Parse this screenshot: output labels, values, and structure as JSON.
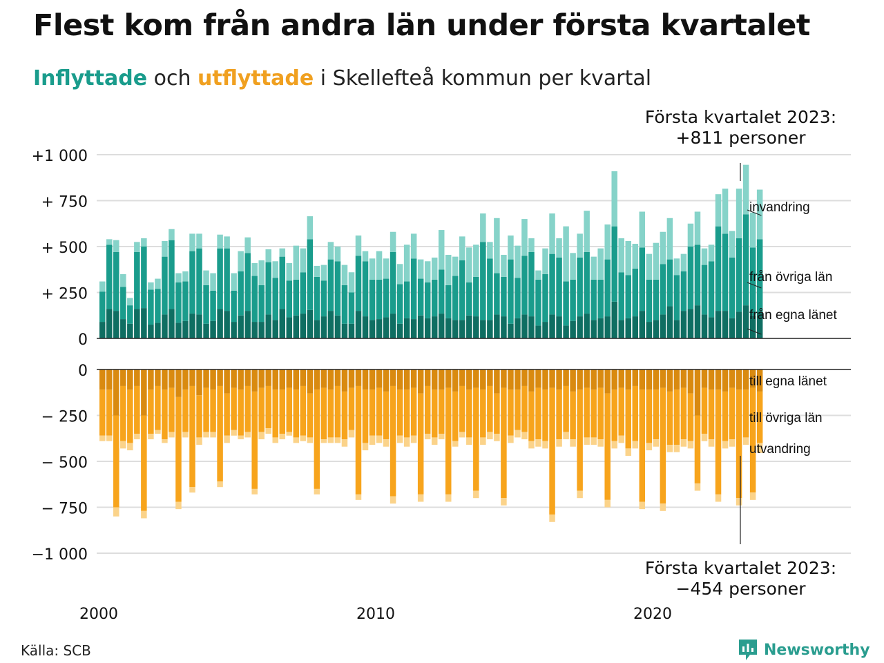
{
  "header": {
    "title": "Flest kom från andra län under första kvartalet",
    "subtitle_in": "Inflyttade",
    "subtitle_mid": " och ",
    "subtitle_out": "utflyttade",
    "subtitle_rest": " i Skellefteå kommun per kvartal"
  },
  "annotations": {
    "top_line1": "Första kvartalet 2023:",
    "top_line2": "+811 personer",
    "bottom_line1": "Första kvartalet 2023:",
    "bottom_line2": "−454 personer"
  },
  "footer": {
    "source": "Källa: SCB",
    "brand": "Newsworthy"
  },
  "colors": {
    "in_own_county": "#0f6e62",
    "in_other_counties": "#1a9c8c",
    "in_abroad": "#86d3c9",
    "out_own_county": "#d98a10",
    "out_other_counties": "#f7a41c",
    "out_abroad": "#fbd38a",
    "brand": "#2a9d8f"
  },
  "chart_data": {
    "type": "bar",
    "stacked": true,
    "x_start": "2000 Q1",
    "x_end": "2023 Q1",
    "x_ticks": [
      "2000",
      "2010",
      "2020"
    ],
    "inflow": {
      "ylim": [
        0,
        1000
      ],
      "y_ticks": [
        "0",
        "+ 250",
        "+ 500",
        "+ 750",
        "+1 000"
      ],
      "series": [
        {
          "name": "från egna länet",
          "values": [
            90,
            160,
            150,
            105,
            80,
            160,
            165,
            75,
            85,
            130,
            160,
            85,
            95,
            135,
            130,
            80,
            95,
            160,
            150,
            90,
            125,
            150,
            90,
            90,
            130,
            100,
            160,
            115,
            125,
            135,
            155,
            100,
            120,
            150,
            125,
            80,
            80,
            150,
            120,
            100,
            105,
            115,
            135,
            80,
            110,
            105,
            125,
            110,
            120,
            135,
            110,
            100,
            100,
            125,
            120,
            100,
            100,
            130,
            120,
            80,
            110,
            130,
            120,
            70,
            90,
            130,
            120,
            70,
            95,
            120,
            135,
            100,
            110,
            120,
            200,
            100,
            110,
            120,
            150,
            90,
            100,
            130,
            175,
            100,
            150,
            160,
            180,
            130,
            115,
            150,
            150,
            110,
            145,
            180,
            125,
            145
          ]
        },
        {
          "name": "från övriga län",
          "values": [
            165,
            350,
            320,
            175,
            100,
            310,
            335,
            190,
            185,
            315,
            375,
            220,
            215,
            340,
            360,
            210,
            165,
            330,
            340,
            170,
            240,
            315,
            250,
            200,
            285,
            230,
            285,
            200,
            195,
            225,
            385,
            235,
            195,
            280,
            295,
            210,
            170,
            300,
            300,
            220,
            215,
            210,
            335,
            215,
            200,
            330,
            200,
            195,
            200,
            240,
            180,
            240,
            325,
            180,
            215,
            425,
            335,
            225,
            215,
            350,
            220,
            320,
            350,
            250,
            260,
            330,
            320,
            240,
            225,
            320,
            335,
            220,
            210,
            310,
            410,
            260,
            235,
            260,
            345,
            230,
            220,
            275,
            255,
            245,
            215,
            340,
            330,
            270,
            305,
            460,
            420,
            330,
            400,
            495,
            370,
            395
          ]
        },
        {
          "name": "invandring",
          "values": [
            55,
            30,
            65,
            70,
            40,
            55,
            45,
            40,
            55,
            85,
            60,
            50,
            55,
            95,
            80,
            80,
            95,
            75,
            65,
            95,
            110,
            85,
            70,
            135,
            70,
            90,
            45,
            95,
            185,
            130,
            125,
            60,
            85,
            95,
            80,
            110,
            110,
            110,
            55,
            115,
            155,
            110,
            110,
            110,
            200,
            135,
            105,
            115,
            120,
            215,
            165,
            105,
            130,
            190,
            175,
            155,
            90,
            300,
            120,
            130,
            175,
            200,
            75,
            50,
            140,
            220,
            105,
            300,
            145,
            130,
            225,
            125,
            170,
            190,
            300,
            185,
            185,
            135,
            195,
            140,
            200,
            175,
            225,
            90,
            95,
            125,
            180,
            90,
            90,
            175,
            245,
            145,
            270,
            270,
            190,
            270
          ]
        }
      ]
    },
    "outflow": {
      "ylim": [
        -1000,
        0
      ],
      "y_ticks": [
        "0",
        "− 250",
        "− 500",
        "− 750",
        "−1 000"
      ],
      "series": [
        {
          "name": "till egna länet",
          "values": [
            -110,
            -110,
            -250,
            -90,
            -110,
            -90,
            -250,
            -110,
            -90,
            -110,
            -100,
            -150,
            -110,
            -90,
            -140,
            -100,
            -110,
            -90,
            -130,
            -100,
            -110,
            -90,
            -120,
            -100,
            -90,
            -110,
            -110,
            -100,
            -110,
            -90,
            -130,
            -110,
            -100,
            -110,
            -90,
            -120,
            -100,
            -90,
            -110,
            -110,
            -100,
            -120,
            -90,
            -110,
            -110,
            -100,
            -130,
            -90,
            -110,
            -110,
            -100,
            -120,
            -90,
            -110,
            -100,
            -110,
            -90,
            -130,
            -100,
            -110,
            -110,
            -90,
            -120,
            -100,
            -110,
            -100,
            -110,
            -90,
            -120,
            -110,
            -100,
            -110,
            -100,
            -130,
            -110,
            -100,
            -110,
            -90,
            -110,
            -110,
            -110,
            -100,
            -120,
            -110,
            -100,
            -130,
            -250,
            -100,
            -110,
            -110,
            -120,
            -100,
            -110,
            -110,
            -100,
            -120
          ]
        },
        {
          "name": "till övriga län",
          "values": [
            -250,
            -250,
            -500,
            -300,
            -290,
            -260,
            -520,
            -240,
            -240,
            -270,
            -240,
            -570,
            -230,
            -550,
            -230,
            -240,
            -230,
            -520,
            -230,
            -230,
            -250,
            -250,
            -530,
            -240,
            -230,
            -260,
            -240,
            -240,
            -260,
            -270,
            -240,
            -540,
            -280,
            -260,
            -280,
            -260,
            -230,
            -590,
            -290,
            -250,
            -260,
            -260,
            -600,
            -250,
            -260,
            -260,
            -550,
            -260,
            -260,
            -240,
            -580,
            -270,
            -250,
            -260,
            -560,
            -260,
            -250,
            -220,
            -600,
            -250,
            -220,
            -250,
            -270,
            -280,
            -280,
            -690,
            -270,
            -250,
            -260,
            -550,
            -270,
            -260,
            -280,
            -580,
            -280,
            -260,
            -320,
            -300,
            -610,
            -290,
            -270,
            -630,
            -290,
            -300,
            -280,
            -260,
            -370,
            -250,
            -270,
            -570,
            -270,
            -280,
            -590,
            -260,
            -570,
            -280
          ]
        },
        {
          "name": "utvandring",
          "values": [
            -30,
            -30,
            -50,
            -40,
            -40,
            -30,
            -40,
            -30,
            -20,
            -20,
            -30,
            -40,
            -30,
            -30,
            -40,
            -30,
            -30,
            -30,
            -40,
            -30,
            -20,
            -30,
            -30,
            -40,
            -30,
            -30,
            -30,
            -20,
            -30,
            -30,
            -30,
            -30,
            -20,
            -30,
            -30,
            -40,
            -40,
            -30,
            -40,
            -50,
            -40,
            -40,
            -40,
            -40,
            -50,
            -40,
            -40,
            -30,
            -40,
            -30,
            -40,
            -30,
            -30,
            -40,
            -40,
            -40,
            -40,
            -40,
            -40,
            -40,
            -40,
            -40,
            -40,
            -40,
            -40,
            -40,
            -40,
            -40,
            -40,
            -40,
            -40,
            -40,
            -40,
            -40,
            -40,
            -40,
            -40,
            -40,
            -40,
            -40,
            -40,
            -40,
            -40,
            -40,
            -40,
            -40,
            -40,
            -40,
            -40,
            -40,
            -40,
            -40,
            -40,
            -40,
            -40,
            -54
          ]
        }
      ]
    }
  }
}
